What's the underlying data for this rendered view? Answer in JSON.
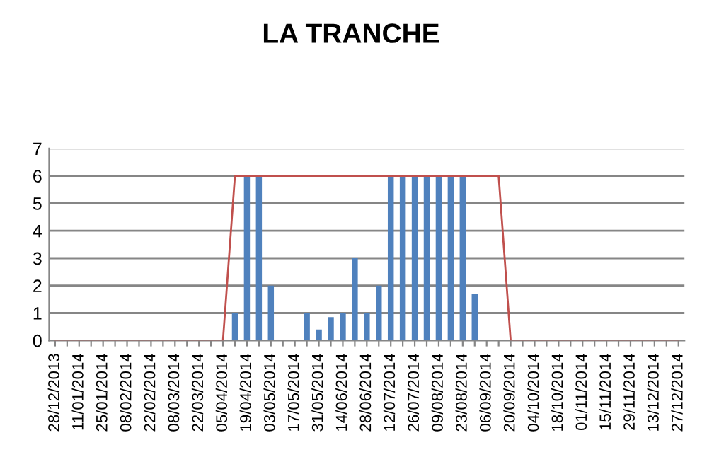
{
  "chart_data": {
    "type": "bar",
    "title": "LA TRANCHE",
    "categories": [
      "28/12/2013",
      null,
      "11/01/2014",
      null,
      "25/01/2014",
      null,
      "08/02/2014",
      null,
      "22/02/2014",
      null,
      "08/03/2014",
      null,
      "22/03/2014",
      null,
      "05/04/2014",
      null,
      "19/04/2014",
      null,
      "03/05/2014",
      null,
      "17/05/2014",
      null,
      "31/05/2014",
      null,
      "14/06/2014",
      null,
      "28/06/2014",
      null,
      "12/07/2014",
      null,
      "26/07/2014",
      null,
      "09/08/2014",
      null,
      "23/08/2014",
      null,
      "06/09/2014",
      null,
      "20/09/2014",
      null,
      "04/10/2014",
      null,
      "18/10/2014",
      null,
      "01/11/2014",
      null,
      "15/11/2014",
      null,
      "29/11/2014",
      null,
      "13/12/2014",
      null,
      "27/12/2014"
    ],
    "series": [
      {
        "color": "#4f81bd",
        "values": [
          null,
          null,
          null,
          null,
          null,
          null,
          null,
          null,
          null,
          null,
          null,
          null,
          null,
          null,
          null,
          1,
          6,
          6,
          2,
          null,
          null,
          1,
          0.4,
          0.85,
          1,
          3,
          1,
          2,
          6,
          6,
          6,
          6,
          6,
          6,
          6,
          1.7,
          null,
          null,
          null,
          null,
          null,
          null,
          null,
          null,
          null,
          null,
          null,
          null,
          null,
          null,
          null,
          null,
          null
        ]
      },
      {
        "type": "line",
        "color": "#c0504d",
        "values": [
          0,
          0,
          0,
          0,
          0,
          0,
          0,
          0,
          0,
          0,
          0,
          0,
          0,
          0,
          0,
          6,
          6,
          6,
          6,
          6,
          6,
          6,
          6,
          6,
          6,
          6,
          6,
          6,
          6,
          6,
          6,
          6,
          6,
          6,
          6,
          6,
          6,
          6,
          0,
          0,
          0,
          0,
          0,
          0,
          0,
          0,
          0,
          0,
          0,
          0,
          0,
          0,
          0
        ]
      }
    ],
    "ylim": [
      0,
      7
    ],
    "yticks": [
      0,
      1,
      2,
      3,
      4,
      5,
      6,
      7
    ],
    "grid": "y"
  }
}
